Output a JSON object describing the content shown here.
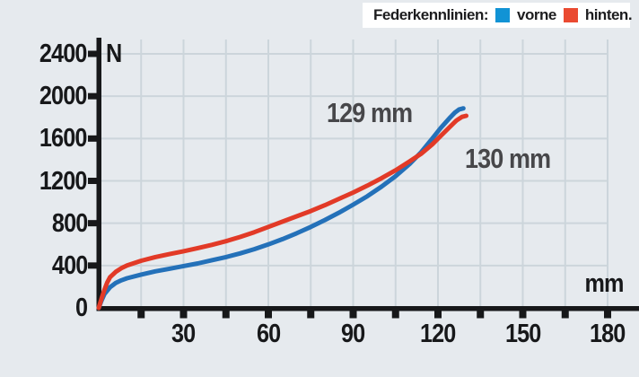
{
  "legend": {
    "title": "Federkennlinien:",
    "items": [
      {
        "label": "vorne",
        "color": "#1193d5"
      },
      {
        "label": "hinten.",
        "color": "#ea4a31"
      }
    ]
  },
  "chart_data": {
    "type": "line",
    "title": "Federkennlinien (spring characteristic curves)",
    "x_unit": "mm",
    "y_unit": "N",
    "xlim": [
      0,
      191
    ],
    "ylim": [
      0,
      2400
    ],
    "grid": "on",
    "x_ticks_labeled": [
      30,
      60,
      90,
      120,
      150,
      180
    ],
    "x_tick_minor_step": 15,
    "y_ticks": [
      0,
      400,
      800,
      1200,
      1600,
      2000,
      2400
    ],
    "legend_position": "top-right",
    "annotations": [
      {
        "text": "129 mm",
        "series": "vorne"
      },
      {
        "text": "130 mm",
        "series": "hinten"
      }
    ],
    "series": [
      {
        "name": "vorne",
        "color": "#2471b9",
        "points": [
          [
            0,
            0
          ],
          [
            1,
            70
          ],
          [
            2,
            130
          ],
          [
            4,
            195
          ],
          [
            6,
            235
          ],
          [
            8,
            260
          ],
          [
            10,
            280
          ],
          [
            15,
            315
          ],
          [
            20,
            345
          ],
          [
            25,
            370
          ],
          [
            30,
            395
          ],
          [
            35,
            420
          ],
          [
            40,
            450
          ],
          [
            45,
            480
          ],
          [
            50,
            515
          ],
          [
            55,
            555
          ],
          [
            60,
            600
          ],
          [
            65,
            650
          ],
          [
            70,
            705
          ],
          [
            75,
            765
          ],
          [
            80,
            830
          ],
          [
            85,
            900
          ],
          [
            90,
            975
          ],
          [
            95,
            1055
          ],
          [
            100,
            1145
          ],
          [
            105,
            1245
          ],
          [
            110,
            1360
          ],
          [
            114,
            1470
          ],
          [
            118,
            1600
          ],
          [
            121,
            1700
          ],
          [
            124,
            1790
          ],
          [
            126,
            1845
          ],
          [
            127.5,
            1875
          ],
          [
            129,
            1885
          ]
        ]
      },
      {
        "name": "hinten",
        "color": "#e23a27",
        "points": [
          [
            0,
            0
          ],
          [
            1,
            90
          ],
          [
            2,
            170
          ],
          [
            3,
            240
          ],
          [
            4,
            290
          ],
          [
            6,
            340
          ],
          [
            8,
            375
          ],
          [
            10,
            400
          ],
          [
            15,
            445
          ],
          [
            20,
            480
          ],
          [
            25,
            508
          ],
          [
            30,
            535
          ],
          [
            35,
            565
          ],
          [
            40,
            595
          ],
          [
            45,
            630
          ],
          [
            50,
            670
          ],
          [
            55,
            715
          ],
          [
            60,
            765
          ],
          [
            65,
            815
          ],
          [
            70,
            865
          ],
          [
            75,
            915
          ],
          [
            80,
            970
          ],
          [
            85,
            1030
          ],
          [
            90,
            1090
          ],
          [
            95,
            1155
          ],
          [
            100,
            1225
          ],
          [
            105,
            1300
          ],
          [
            110,
            1385
          ],
          [
            114,
            1455
          ],
          [
            118,
            1545
          ],
          [
            121,
            1625
          ],
          [
            124,
            1705
          ],
          [
            126.5,
            1770
          ],
          [
            128.5,
            1805
          ],
          [
            130,
            1815
          ]
        ]
      }
    ]
  },
  "colors": {
    "background": "#e6eaee",
    "grid": "#ccd5db",
    "axis": "#17181a",
    "legend_background": "#ffffff",
    "text": "#17181a",
    "annotation": "#47474a"
  }
}
